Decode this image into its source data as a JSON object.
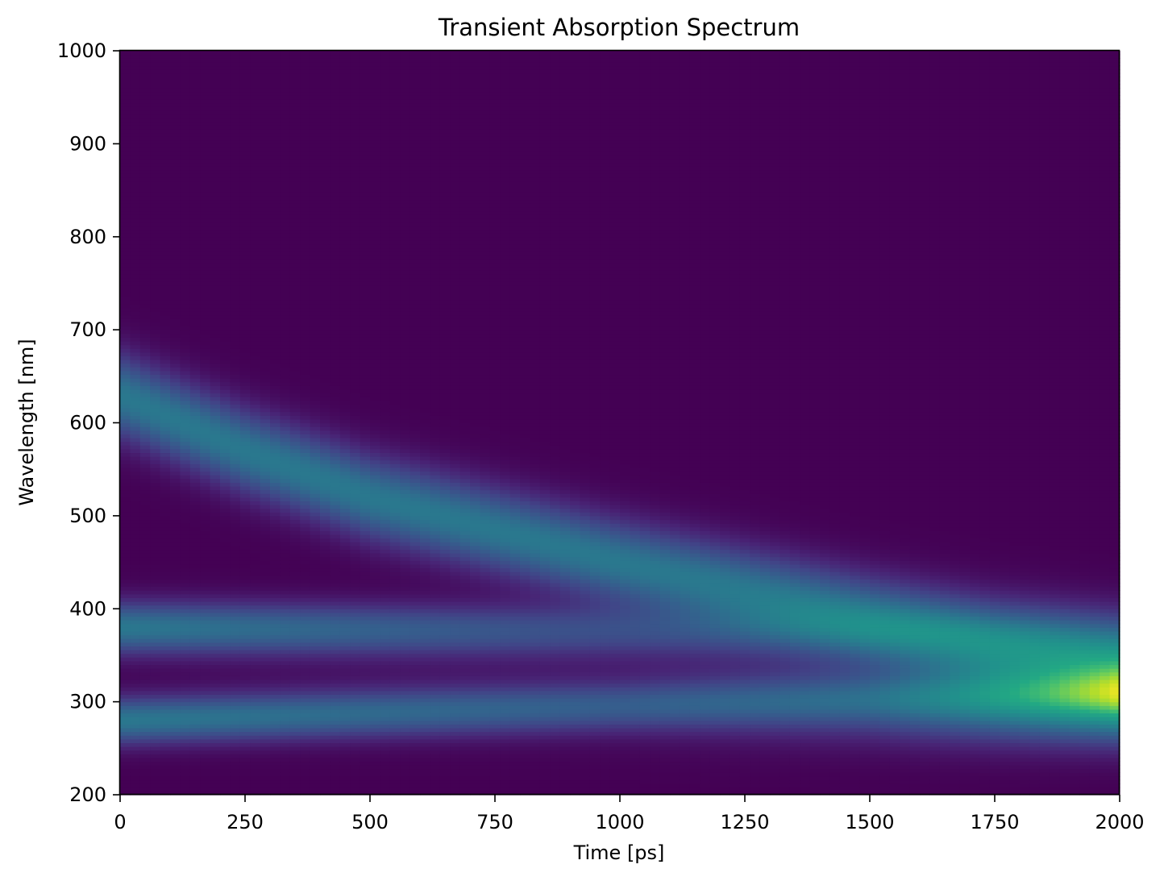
{
  "chart_data": {
    "type": "heatmap",
    "title": "Transient Absorption Spectrum",
    "xlabel": "Time [ps]",
    "ylabel": "Wavelength [nm]",
    "xlim": [
      0,
      2000
    ],
    "ylim": [
      200,
      1000
    ],
    "x_ticks": [
      0,
      250,
      500,
      750,
      1000,
      1250,
      1500,
      1750,
      2000
    ],
    "y_ticks": [
      200,
      300,
      400,
      500,
      600,
      700,
      800,
      900,
      1000
    ],
    "x_tick_labels": [
      "0",
      "250",
      "500",
      "750",
      "1000",
      "1250",
      "1500",
      "1750",
      "2000"
    ],
    "y_tick_labels": [
      "200",
      "300",
      "400",
      "500",
      "600",
      "700",
      "800",
      "900",
      "1000"
    ],
    "colormap": "viridis",
    "grid": false,
    "x_bins": 100,
    "y_bins": 200,
    "components": [
      {
        "center_nm_by_time": {
          "t": [
            0,
            250,
            500,
            750,
            1000,
            1250,
            1500,
            1750,
            2000
          ],
          "nm": [
            630,
            570,
            520,
            485,
            450,
            420,
            390,
            365,
            350
          ]
        },
        "sigma_nm": 32,
        "amplitude_by_time": {
          "t": [
            0,
            2000
          ],
          "a": [
            0.5,
            0.5
          ]
        }
      },
      {
        "center_nm_by_time": {
          "t": [
            0,
            2000
          ],
          "nm": [
            380,
            370
          ]
        },
        "sigma_nm": 20,
        "amplitude_by_time": {
          "t": [
            0,
            2000
          ],
          "a": [
            0.5,
            0.05
          ]
        }
      },
      {
        "center_nm_by_time": {
          "t": [
            0,
            2000
          ],
          "nm": [
            280,
            310
          ]
        },
        "sigma_nm": 18,
        "amplitude_by_time": {
          "t": [
            0,
            2000
          ],
          "a": [
            0.5,
            0.05
          ]
        }
      },
      {
        "center_nm_by_time": {
          "t": [
            0,
            2000
          ],
          "nm": [
            300,
            300
          ]
        },
        "sigma_nm": 30,
        "amplitude_by_time": {
          "t": [
            0,
            1000,
            1500,
            2000
          ],
          "a": [
            0.0,
            0.1,
            0.3,
            0.75
          ]
        }
      }
    ],
    "value_range": [
      0,
      1
    ]
  }
}
